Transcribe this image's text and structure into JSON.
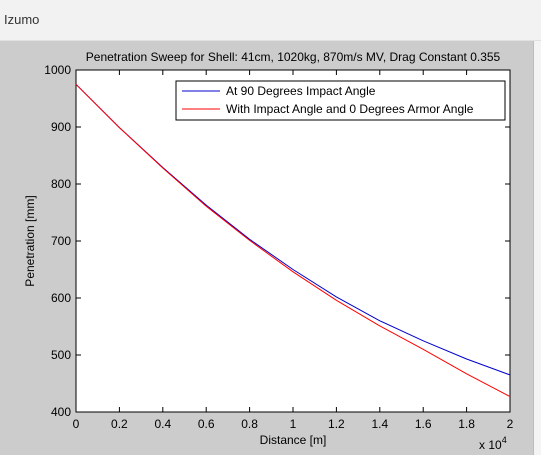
{
  "window": {
    "title": "Izumo"
  },
  "chart_data": {
    "type": "line",
    "title": "Penetration Sweep for Shell: 41cm, 1020kg, 870m/s MV, Drag Constant 0.355",
    "xlabel": "Distance [m]",
    "ylabel": "Penetration [mm]",
    "x_multiplier_label": "x 10",
    "x_multiplier_exp": "4",
    "xlim": [
      0,
      20000
    ],
    "ylim": [
      400,
      1000
    ],
    "x_ticks": [
      0,
      2000,
      4000,
      6000,
      8000,
      10000,
      12000,
      14000,
      16000,
      18000,
      20000
    ],
    "x_tick_labels": [
      "0",
      "0.2",
      "0.4",
      "0.6",
      "0.8",
      "1",
      "1.2",
      "1.4",
      "1.6",
      "1.8",
      "2"
    ],
    "y_ticks": [
      400,
      500,
      600,
      700,
      800,
      900,
      1000
    ],
    "y_tick_labels": [
      "400",
      "500",
      "600",
      "700",
      "800",
      "900",
      "1000"
    ],
    "grid": false,
    "legend_position": "top-right",
    "x": [
      0,
      2000,
      4000,
      6000,
      8000,
      10000,
      12000,
      14000,
      16000,
      18000,
      20000
    ],
    "series": [
      {
        "name": "At 90 Degrees Impact Angle",
        "color": "#0000cc",
        "values": [
          975,
          899,
          829,
          763,
          703,
          650,
          602,
          560,
          525,
          493,
          465
        ]
      },
      {
        "name": "With Impact Angle and 0 Degrees Armor Angle",
        "color": "#ff0000",
        "values": [
          975,
          899,
          828,
          761,
          701,
          646,
          596,
          551,
          510,
          467,
          427
        ]
      }
    ]
  }
}
